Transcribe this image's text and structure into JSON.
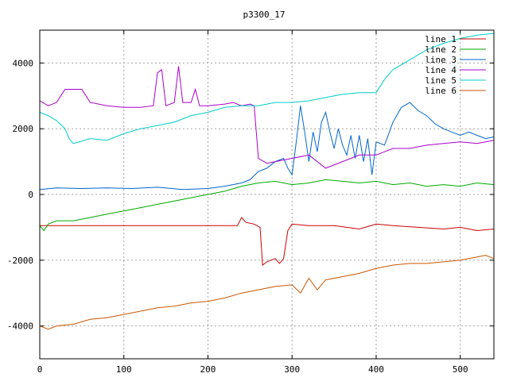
{
  "chart_data": {
    "type": "line",
    "title": "p3300_17",
    "xlabel": "",
    "ylabel": "",
    "xlim": [
      0,
      540
    ],
    "ylim": [
      -5000,
      5000
    ],
    "xticks": [
      0,
      100,
      200,
      300,
      400,
      500
    ],
    "yticks": [
      -4000,
      -2000,
      0,
      2000,
      4000
    ],
    "grid": true,
    "legend_position": "top-right",
    "series": [
      {
        "name": "line 1",
        "color": "#cc0000",
        "points": [
          [
            0,
            -950
          ],
          [
            10,
            -950
          ],
          [
            50,
            -950
          ],
          [
            100,
            -950
          ],
          [
            150,
            -950
          ],
          [
            200,
            -950
          ],
          [
            235,
            -950
          ],
          [
            240,
            -700
          ],
          [
            245,
            -850
          ],
          [
            255,
            -900
          ],
          [
            262,
            -1000
          ],
          [
            265,
            -2150
          ],
          [
            270,
            -2050
          ],
          [
            280,
            -1950
          ],
          [
            285,
            -2100
          ],
          [
            290,
            -1950
          ],
          [
            295,
            -1100
          ],
          [
            300,
            -900
          ],
          [
            320,
            -950
          ],
          [
            350,
            -950
          ],
          [
            380,
            -1050
          ],
          [
            400,
            -900
          ],
          [
            420,
            -950
          ],
          [
            450,
            -1000
          ],
          [
            480,
            -1050
          ],
          [
            500,
            -1000
          ],
          [
            520,
            -1100
          ],
          [
            540,
            -1050
          ]
        ]
      },
      {
        "name": "line 2",
        "color": "#00aa00",
        "points": [
          [
            0,
            -950
          ],
          [
            5,
            -1100
          ],
          [
            10,
            -900
          ],
          [
            20,
            -800
          ],
          [
            40,
            -800
          ],
          [
            60,
            -700
          ],
          [
            80,
            -600
          ],
          [
            100,
            -500
          ],
          [
            120,
            -400
          ],
          [
            140,
            -300
          ],
          [
            160,
            -200
          ],
          [
            180,
            -100
          ],
          [
            200,
            0
          ],
          [
            220,
            100
          ],
          [
            240,
            250
          ],
          [
            260,
            350
          ],
          [
            280,
            400
          ],
          [
            300,
            300
          ],
          [
            320,
            350
          ],
          [
            340,
            450
          ],
          [
            360,
            400
          ],
          [
            380,
            350
          ],
          [
            400,
            400
          ],
          [
            420,
            300
          ],
          [
            440,
            350
          ],
          [
            460,
            250
          ],
          [
            480,
            300
          ],
          [
            500,
            250
          ],
          [
            520,
            350
          ],
          [
            540,
            300
          ]
        ]
      },
      {
        "name": "line 3",
        "color": "#0066cc",
        "points": [
          [
            0,
            150
          ],
          [
            20,
            200
          ],
          [
            50,
            180
          ],
          [
            80,
            200
          ],
          [
            110,
            180
          ],
          [
            140,
            220
          ],
          [
            170,
            150
          ],
          [
            200,
            180
          ],
          [
            220,
            250
          ],
          [
            240,
            350
          ],
          [
            250,
            450
          ],
          [
            260,
            700
          ],
          [
            270,
            800
          ],
          [
            275,
            900
          ],
          [
            280,
            1000
          ],
          [
            290,
            1100
          ],
          [
            295,
            800
          ],
          [
            300,
            600
          ],
          [
            305,
            1600
          ],
          [
            310,
            2700
          ],
          [
            315,
            1900
          ],
          [
            320,
            1000
          ],
          [
            325,
            1900
          ],
          [
            330,
            1300
          ],
          [
            335,
            2200
          ],
          [
            340,
            2500
          ],
          [
            345,
            1900
          ],
          [
            350,
            1400
          ],
          [
            355,
            2000
          ],
          [
            360,
            1500
          ],
          [
            365,
            1200
          ],
          [
            370,
            1800
          ],
          [
            375,
            1100
          ],
          [
            380,
            1800
          ],
          [
            385,
            1000
          ],
          [
            390,
            1700
          ],
          [
            395,
            600
          ],
          [
            400,
            1600
          ],
          [
            410,
            1500
          ],
          [
            420,
            2200
          ],
          [
            430,
            2650
          ],
          [
            440,
            2800
          ],
          [
            450,
            2550
          ],
          [
            460,
            2400
          ],
          [
            470,
            2150
          ],
          [
            480,
            2000
          ],
          [
            490,
            1900
          ],
          [
            500,
            1800
          ],
          [
            510,
            1900
          ],
          [
            520,
            1800
          ],
          [
            530,
            1700
          ],
          [
            540,
            1750
          ]
        ]
      },
      {
        "name": "line 4",
        "color": "#aa00cc",
        "points": [
          [
            0,
            2850
          ],
          [
            10,
            2700
          ],
          [
            20,
            2800
          ],
          [
            30,
            3200
          ],
          [
            40,
            3200
          ],
          [
            50,
            3200
          ],
          [
            60,
            2800
          ],
          [
            80,
            2700
          ],
          [
            100,
            2650
          ],
          [
            120,
            2650
          ],
          [
            135,
            2700
          ],
          [
            140,
            3700
          ],
          [
            145,
            3800
          ],
          [
            150,
            2700
          ],
          [
            160,
            2800
          ],
          [
            165,
            3900
          ],
          [
            170,
            2800
          ],
          [
            180,
            2800
          ],
          [
            185,
            3200
          ],
          [
            190,
            2700
          ],
          [
            200,
            2700
          ],
          [
            220,
            2750
          ],
          [
            230,
            2800
          ],
          [
            240,
            2700
          ],
          [
            250,
            2750
          ],
          [
            255,
            2700
          ],
          [
            260,
            1100
          ],
          [
            270,
            950
          ],
          [
            280,
            1000
          ],
          [
            300,
            1100
          ],
          [
            320,
            1200
          ],
          [
            340,
            800
          ],
          [
            360,
            1000
          ],
          [
            380,
            1200
          ],
          [
            400,
            1200
          ],
          [
            420,
            1400
          ],
          [
            440,
            1400
          ],
          [
            460,
            1500
          ],
          [
            480,
            1550
          ],
          [
            500,
            1600
          ],
          [
            520,
            1550
          ],
          [
            540,
            1650
          ]
        ]
      },
      {
        "name": "line 5",
        "color": "#00cccc",
        "points": [
          [
            0,
            2500
          ],
          [
            10,
            2400
          ],
          [
            20,
            2250
          ],
          [
            30,
            2000
          ],
          [
            35,
            1700
          ],
          [
            40,
            1550
          ],
          [
            60,
            1700
          ],
          [
            80,
            1650
          ],
          [
            100,
            1850
          ],
          [
            120,
            2000
          ],
          [
            140,
            2100
          ],
          [
            160,
            2200
          ],
          [
            180,
            2400
          ],
          [
            200,
            2500
          ],
          [
            220,
            2650
          ],
          [
            240,
            2700
          ],
          [
            260,
            2700
          ],
          [
            280,
            2800
          ],
          [
            300,
            2800
          ],
          [
            320,
            2850
          ],
          [
            340,
            2950
          ],
          [
            360,
            3050
          ],
          [
            380,
            3100
          ],
          [
            400,
            3100
          ],
          [
            410,
            3500
          ],
          [
            420,
            3800
          ],
          [
            440,
            4100
          ],
          [
            460,
            4400
          ],
          [
            480,
            4600
          ],
          [
            500,
            4750
          ],
          [
            520,
            4850
          ],
          [
            540,
            4900
          ]
        ]
      },
      {
        "name": "line 6",
        "color": "#cc5500",
        "points": [
          [
            0,
            -4000
          ],
          [
            10,
            -4100
          ],
          [
            20,
            -4000
          ],
          [
            40,
            -3950
          ],
          [
            60,
            -3800
          ],
          [
            80,
            -3750
          ],
          [
            100,
            -3650
          ],
          [
            120,
            -3550
          ],
          [
            140,
            -3450
          ],
          [
            160,
            -3400
          ],
          [
            180,
            -3300
          ],
          [
            200,
            -3250
          ],
          [
            220,
            -3150
          ],
          [
            240,
            -3000
          ],
          [
            260,
            -2900
          ],
          [
            280,
            -2800
          ],
          [
            300,
            -2750
          ],
          [
            310,
            -3000
          ],
          [
            320,
            -2550
          ],
          [
            330,
            -2900
          ],
          [
            340,
            -2600
          ],
          [
            360,
            -2500
          ],
          [
            380,
            -2400
          ],
          [
            400,
            -2250
          ],
          [
            420,
            -2150
          ],
          [
            440,
            -2100
          ],
          [
            460,
            -2100
          ],
          [
            480,
            -2050
          ],
          [
            500,
            -2000
          ],
          [
            520,
            -1900
          ],
          [
            530,
            -1850
          ],
          [
            540,
            -1950
          ]
        ]
      }
    ]
  }
}
